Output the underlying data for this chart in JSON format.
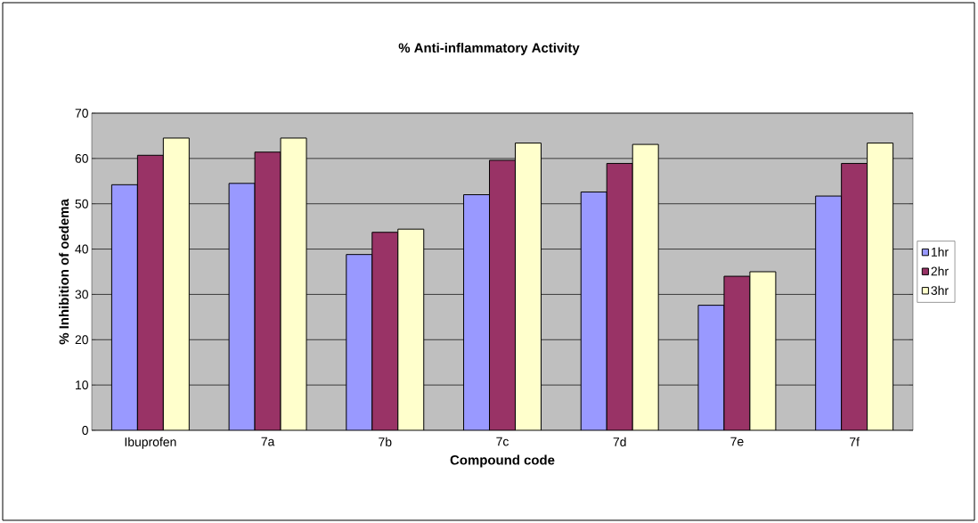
{
  "chart_data": {
    "type": "bar",
    "title": "% Anti-inflammatory Activity",
    "xlabel": "Compound code",
    "ylabel": "% Inhibition of oedema",
    "categories": [
      "Ibuprofen",
      "7a",
      "7b",
      "7c",
      "7d",
      "7e",
      "7f"
    ],
    "series": [
      {
        "name": "1hr",
        "color": "#9999ff",
        "values": [
          54.2,
          54.5,
          38.8,
          52.0,
          52.6,
          27.6,
          51.7
        ]
      },
      {
        "name": "2hr",
        "color": "#993366",
        "values": [
          60.7,
          61.4,
          43.7,
          59.6,
          58.9,
          34.0,
          58.9
        ]
      },
      {
        "name": "3hr",
        "color": "#ffffcc",
        "values": [
          64.5,
          64.5,
          44.4,
          63.4,
          63.1,
          35.0,
          63.4
        ]
      }
    ],
    "ylim": [
      0,
      70
    ],
    "yticks": [
      0,
      10,
      20,
      30,
      40,
      50,
      60,
      70
    ],
    "grid": "y",
    "legend": "right"
  }
}
